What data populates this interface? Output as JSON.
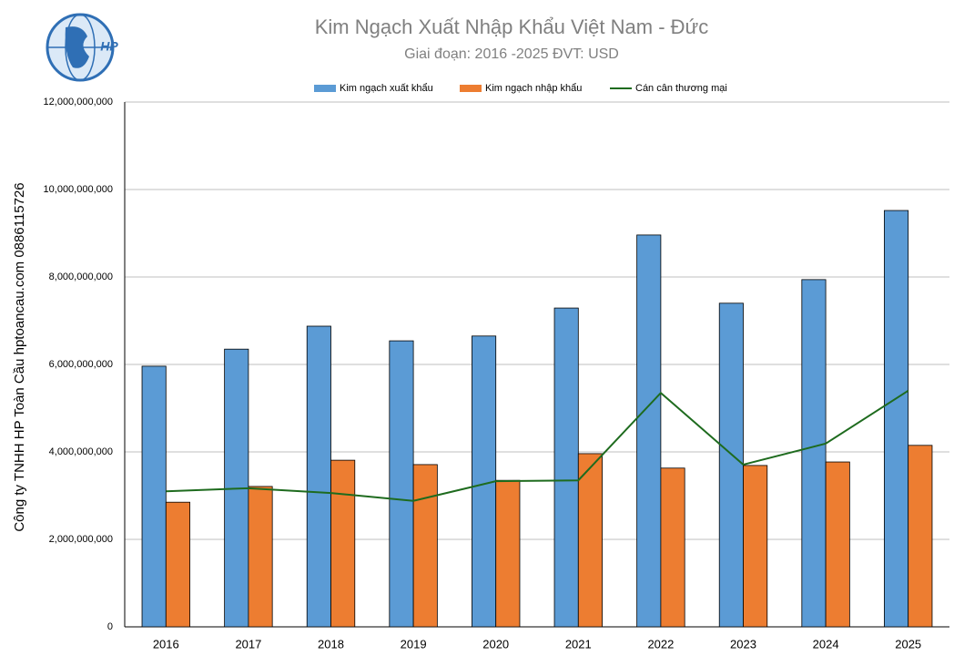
{
  "chart_data": {
    "type": "bar",
    "title": "Kim Ngạch Xuất Nhập Khẩu Việt Nam - Đức",
    "subtitle": "Giai đoạn: 2016 -2025  ĐVT: USD",
    "side_text": "Công ty TNHH HP Toàn Cầu hptoancau.com 0886115726",
    "logo_text": "HP",
    "categories": [
      "2016",
      "2017",
      "2018",
      "2019",
      "2020",
      "2021",
      "2022",
      "2023",
      "2024",
      "2025"
    ],
    "series": [
      {
        "name": "Kim ngạch xuất khẩu",
        "type": "bar",
        "color": "#5b9bd5",
        "values": [
          5960000000,
          6350000000,
          6875000000,
          6540000000,
          6650000000,
          7290000000,
          8960000000,
          7400000000,
          7940000000,
          9520000000
        ]
      },
      {
        "name": "Kim ngạch nhập khẩu",
        "type": "bar",
        "color": "#ed7d31",
        "values": [
          2850000000,
          3210000000,
          3810000000,
          3710000000,
          3350000000,
          3960000000,
          3630000000,
          3690000000,
          3770000000,
          4150000000
        ]
      },
      {
        "name": "Cán cân thương mại",
        "type": "line",
        "color": "#1e6b1e",
        "values": [
          3100000000,
          3170000000,
          3060000000,
          2880000000,
          3330000000,
          3350000000,
          5350000000,
          3710000000,
          4190000000,
          5400000000
        ]
      }
    ],
    "ylim": [
      0,
      12000000000
    ],
    "yticks": [
      0,
      {
        "value": 2000000000,
        "label": "2,000,000,000"
      },
      {
        "value": 4000000000,
        "label": "4,000,000,000"
      },
      {
        "value": 6000000000,
        "label": "6,000,000,000"
      },
      {
        "value": 8000000000,
        "label": "8,000,000,000"
      },
      {
        "value": 10000000000,
        "label": "10,000,000,000"
      },
      {
        "value": 12000000000,
        "label": "12,000,000,000"
      }
    ],
    "grid": true,
    "legend": "top"
  }
}
